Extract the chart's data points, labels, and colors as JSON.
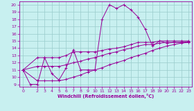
{
  "xlabel": "Windchill (Refroidissement éolien,°C)",
  "ylabel": "",
  "bg_color": "#c8f0f0",
  "line_color": "#990099",
  "grid_color": "#aadddd",
  "xlim": [
    -0.5,
    23.5
  ],
  "ylim": [
    8.7,
    20.5
  ],
  "yticks": [
    9,
    10,
    11,
    12,
    13,
    14,
    15,
    16,
    17,
    18,
    19,
    20
  ],
  "xticks": [
    0,
    2,
    3,
    4,
    5,
    6,
    7,
    8,
    9,
    10,
    11,
    12,
    13,
    14,
    15,
    16,
    17,
    18,
    19,
    20,
    21,
    22,
    23
  ],
  "series": [
    {
      "x": [
        0,
        1,
        2,
        3,
        4,
        5,
        6,
        7,
        8,
        9,
        10,
        11,
        12,
        13,
        14,
        15,
        16,
        17,
        18,
        19,
        20,
        21,
        22,
        23
      ],
      "y": [
        11.0,
        9.0,
        9.0,
        12.7,
        10.5,
        9.6,
        11.3,
        13.8,
        11.0,
        11.0,
        11.0,
        18.0,
        20.0,
        19.5,
        20.0,
        19.3,
        18.3,
        16.6,
        14.3,
        15.0,
        14.7,
        14.8,
        14.8,
        14.8
      ]
    },
    {
      "x": [
        0,
        2,
        3,
        4,
        5,
        6,
        7,
        8,
        9,
        10,
        11,
        12,
        13,
        14,
        15,
        16,
        17,
        18,
        19,
        20,
        21,
        22,
        23
      ],
      "y": [
        11.0,
        12.7,
        12.7,
        12.7,
        12.7,
        13.0,
        13.5,
        13.5,
        13.5,
        13.5,
        13.7,
        13.9,
        14.0,
        14.2,
        14.5,
        14.8,
        14.8,
        14.8,
        15.0,
        15.0,
        15.0,
        15.0,
        15.0
      ]
    },
    {
      "x": [
        0,
        2,
        3,
        4,
        5,
        6,
        7,
        8,
        9,
        10,
        11,
        12,
        13,
        14,
        15,
        16,
        17,
        18,
        19,
        20,
        21,
        22,
        23
      ],
      "y": [
        11.0,
        11.5,
        11.5,
        11.5,
        11.5,
        11.7,
        12.0,
        12.2,
        12.5,
        12.7,
        13.0,
        13.3,
        13.5,
        13.8,
        14.0,
        14.3,
        14.5,
        14.5,
        14.7,
        14.8,
        14.8,
        14.8,
        14.9
      ]
    },
    {
      "x": [
        0,
        2,
        3,
        4,
        5,
        6,
        7,
        8,
        9,
        10,
        11,
        12,
        13,
        14,
        15,
        16,
        17,
        18,
        19,
        20,
        21,
        22,
        23
      ],
      "y": [
        11.0,
        9.5,
        9.5,
        9.5,
        9.5,
        9.7,
        10.0,
        10.3,
        10.7,
        11.0,
        11.3,
        11.7,
        12.0,
        12.3,
        12.7,
        13.0,
        13.3,
        13.7,
        14.0,
        14.3,
        14.5,
        14.7,
        14.8
      ]
    }
  ]
}
